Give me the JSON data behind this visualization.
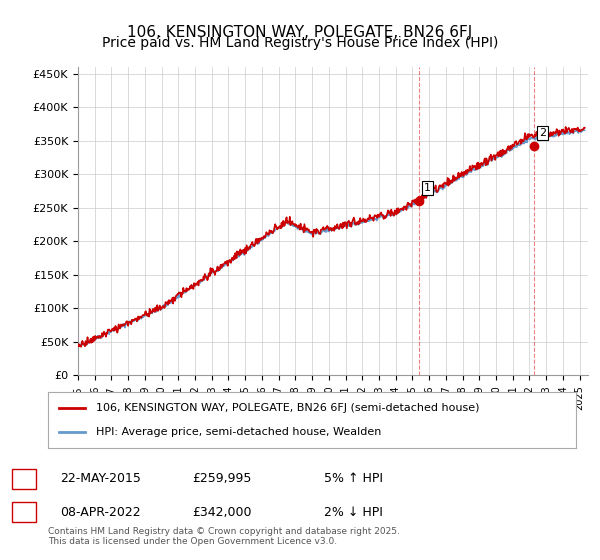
{
  "title": "106, KENSINGTON WAY, POLEGATE, BN26 6FJ",
  "subtitle": "Price paid vs. HM Land Registry's House Price Index (HPI)",
  "ylabel_ticks": [
    "£0",
    "£50K",
    "£100K",
    "£150K",
    "£200K",
    "£250K",
    "£300K",
    "£350K",
    "£400K",
    "£450K"
  ],
  "ytick_values": [
    0,
    50000,
    100000,
    150000,
    200000,
    250000,
    300000,
    350000,
    400000,
    450000
  ],
  "ylim": [
    0,
    460000
  ],
  "xlim_start": 1995.0,
  "xlim_end": 2025.5,
  "xtick_years": [
    1995,
    1996,
    1997,
    1998,
    1999,
    2000,
    2001,
    2002,
    2003,
    2004,
    2005,
    2006,
    2007,
    2008,
    2009,
    2010,
    2011,
    2012,
    2013,
    2014,
    2015,
    2016,
    2017,
    2018,
    2019,
    2020,
    2021,
    2022,
    2023,
    2024,
    2025
  ],
  "vline1_x": 2015.38,
  "vline2_x": 2022.27,
  "vline_color": "#dd0000",
  "vline_alpha": 0.5,
  "marker1_x": 2015.38,
  "marker1_y": 259995,
  "marker2_x": 2022.27,
  "marker2_y": 342000,
  "red_line_color": "#cc0000",
  "blue_line_color": "#6699cc",
  "legend_label_red": "106, KENSINGTON WAY, POLEGATE, BN26 6FJ (semi-detached house)",
  "legend_label_blue": "HPI: Average price, semi-detached house, Wealden",
  "annotation1_label": "1",
  "annotation2_label": "2",
  "ann1_date": "22-MAY-2015",
  "ann1_price": "£259,995",
  "ann1_hpi": "5% ↑ HPI",
  "ann2_date": "08-APR-2022",
  "ann2_price": "£342,000",
  "ann2_hpi": "2% ↓ HPI",
  "footer": "Contains HM Land Registry data © Crown copyright and database right 2025.\nThis data is licensed under the Open Government Licence v3.0.",
  "background_color": "#ffffff",
  "grid_color": "#cccccc",
  "title_fontsize": 11,
  "subtitle_fontsize": 10
}
